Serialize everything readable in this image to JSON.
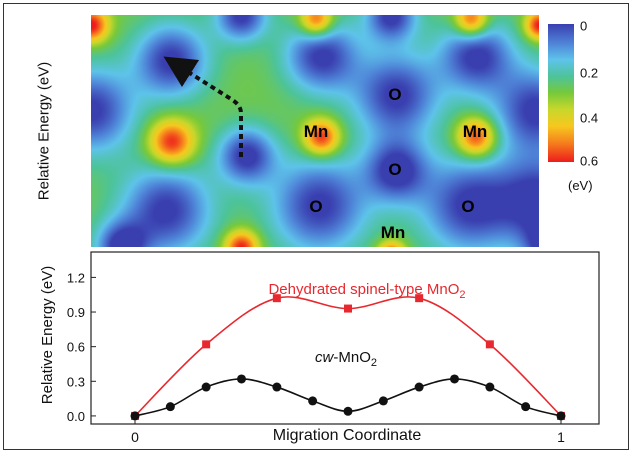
{
  "chart_data": [
    {
      "type": "heatmap",
      "ylabel": "Relative Energy (eV)",
      "colorbar": {
        "ticks": [
          "0",
          "0.2",
          "0.4",
          "0.6"
        ],
        "tick_values": [
          0,
          0.2,
          0.4,
          0.6
        ],
        "unit": "(eV)",
        "range": [
          0,
          0.6
        ]
      },
      "annotations": [
        "O",
        "Mn",
        "Mn",
        "O",
        "O",
        "O",
        "Mn"
      ],
      "migration_arrow": "dotted-arrow"
    },
    {
      "type": "line",
      "xlabel": "Migration Coordinate",
      "ylabel": "Relative Energy (eV)",
      "xlim": [
        0,
        1
      ],
      "ylim": [
        -0.07,
        1.42
      ],
      "xticks": [
        "0",
        "1"
      ],
      "yticks": [
        "0.0",
        "0.3",
        "0.6",
        "0.9",
        "1.2"
      ],
      "series": [
        {
          "label_prefix": "Dehydrated spinel-type MnO",
          "label_sub": "2",
          "label_suffix": "",
          "color": "#e8282e",
          "marker": "square",
          "x": [
            0,
            0.167,
            0.333,
            0.5,
            0.667,
            0.833,
            1
          ],
          "y": [
            0,
            0.62,
            1.02,
            0.93,
            1.02,
            0.62,
            0
          ]
        },
        {
          "label_prefix": "",
          "label_italic": "cw",
          "label_mid": "-MnO",
          "label_sub": "2",
          "color": "#111111",
          "marker": "circle",
          "x": [
            0,
            0.083,
            0.167,
            0.25,
            0.333,
            0.417,
            0.5,
            0.583,
            0.667,
            0.75,
            0.833,
            0.917,
            1
          ],
          "y": [
            0,
            0.08,
            0.25,
            0.32,
            0.25,
            0.13,
            0.04,
            0.13,
            0.25,
            0.32,
            0.25,
            0.08,
            0
          ]
        }
      ]
    }
  ]
}
